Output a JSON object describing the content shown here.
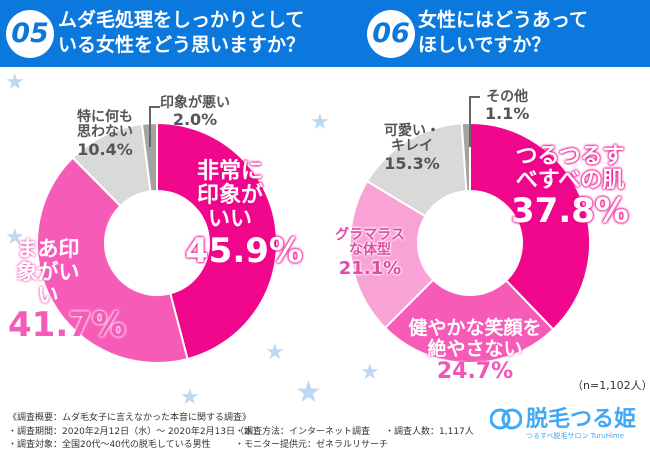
{
  "questions": [
    {
      "number": "05",
      "title_line1": "ムダ毛処理をしっかりとして",
      "title_line2": "いる女性をどう思いますか？"
    },
    {
      "number": "06",
      "title_line1": "女性にはどうあって",
      "title_line2": "ほしいですか？"
    }
  ],
  "chart_data": [
    {
      "type": "pie",
      "title": "ムダ毛処理をしっかりとしている女性をどう思いますか？",
      "donut": true,
      "categories": [
        "非常に印象がいい",
        "まあ印象がいい",
        "特に何も思わない",
        "印象が悪い"
      ],
      "values": [
        45.9,
        41.7,
        10.4,
        2.0
      ],
      "labels": [
        "45.9%",
        "41.7%",
        "10.4%",
        "2.0%"
      ],
      "colors": [
        "#f0078c",
        "#f75bb8",
        "#d9d9d9",
        "#a3a3a3"
      ]
    },
    {
      "type": "pie",
      "title": "女性にはどうあってほしいですか？",
      "donut": true,
      "categories": [
        "つるつるすべすべの肌",
        "健やかな笑顔を絶やさない",
        "グラマラスな体型",
        "可愛い・キレイ",
        "その他"
      ],
      "values": [
        37.8,
        24.7,
        21.1,
        15.3,
        1.1
      ],
      "labels": [
        "37.8%",
        "24.7%",
        "21.1%",
        "15.3%",
        "1.1%"
      ],
      "colors": [
        "#f0078c",
        "#f75bb8",
        "#f9a2d6",
        "#d9d9d9",
        "#a3a3a3"
      ]
    }
  ],
  "sample": "（n=1,102人）",
  "footer": {
    "overview": "《調査概要：ムダ毛女子に言えなかった本音に関する調査》",
    "period": "・調査期間：2020年2月12日（水）～ 2020年2月13日（木）",
    "method": "・調査方法：インターネット調査",
    "count": "・調査人数：1,117人",
    "target": "・調査対象：全国20代～40代の脱毛している男性",
    "provider": "・モニター提供元：ゼネラルリサーチ"
  },
  "logo": {
    "name": "脱毛つる姫",
    "tagline": "つるすべ脱毛サロン TuruHime"
  }
}
